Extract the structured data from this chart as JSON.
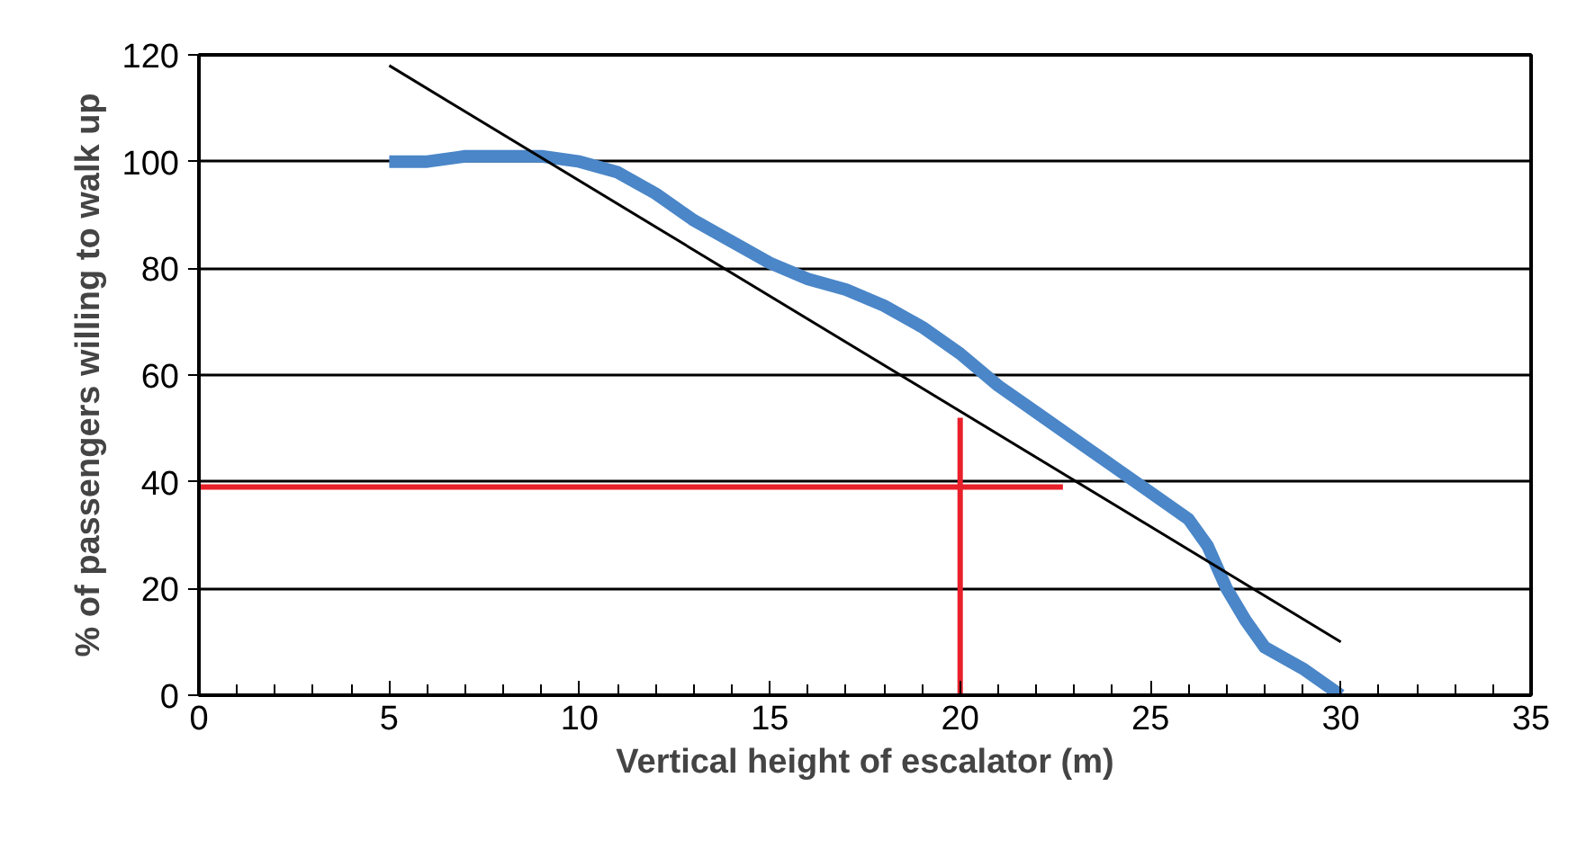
{
  "chart_data": {
    "type": "line",
    "xlabel": "Vertical height of escalator (m)",
    "ylabel": "% of passengers willing to walk up",
    "xlim": [
      0,
      35
    ],
    "ylim": [
      0,
      120
    ],
    "xticks": [
      0,
      5,
      10,
      15,
      20,
      25,
      30,
      35
    ],
    "yticks": [
      0,
      20,
      40,
      60,
      80,
      100,
      120
    ],
    "grid": "y",
    "marker": "none",
    "line_style": "solid",
    "series": [
      {
        "color": "#4a86c8",
        "x": [
          5,
          6,
          7,
          8,
          9,
          10,
          11,
          12,
          13,
          14,
          15,
          16,
          17,
          18,
          19,
          20,
          21,
          22,
          23,
          24,
          25,
          26,
          26.5,
          27,
          27.5,
          28,
          29,
          30
        ],
        "values": [
          100,
          100,
          101,
          101,
          101,
          100,
          98,
          94,
          89,
          85,
          81,
          78,
          76,
          73,
          69,
          64,
          58,
          53,
          48,
          43,
          38,
          33,
          28,
          20,
          14,
          9,
          5,
          0
        ]
      },
      {
        "color": "#000000",
        "x": [
          5,
          30
        ],
        "values": [
          118,
          10
        ]
      },
      {
        "color": "#e8202a",
        "x": [
          0,
          22.7
        ],
        "values": [
          39,
          39
        ]
      },
      {
        "color": "#e8202a",
        "x": [
          20,
          20
        ],
        "values": [
          0,
          52
        ]
      }
    ]
  }
}
